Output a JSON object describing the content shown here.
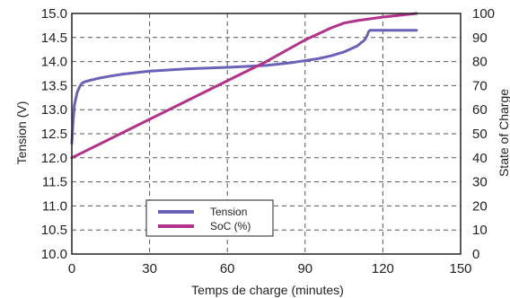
{
  "chart_data": {
    "type": "line",
    "title": "",
    "xlabel": "Temps de charge (minutes)",
    "ylabel_left": "Tension (V)",
    "ylabel_right": "State of Charge",
    "xlim": [
      0,
      150
    ],
    "ylim_left": [
      10.0,
      15.0
    ],
    "ylim_right": [
      0,
      100
    ],
    "x_ticks": [
      "0",
      "30",
      "60",
      "90",
      "120",
      "150"
    ],
    "y_left_ticks": [
      "10.0",
      "10.5",
      "11.0",
      "11.5",
      "12.0",
      "12.5",
      "13.0",
      "13.5",
      "14.0",
      "14.5",
      "15.0"
    ],
    "y_right_ticks": [
      "0",
      "10",
      "20",
      "30",
      "40",
      "50",
      "60",
      "70",
      "80",
      "90",
      "100"
    ],
    "grid": true,
    "legend_position": "bottom-center",
    "series": [
      {
        "name": "Tension",
        "axis": "left",
        "color": "#6a62b9",
        "x": [
          0,
          0.5,
          1,
          2,
          3,
          4,
          5,
          7,
          10,
          15,
          20,
          30,
          45,
          60,
          75,
          85,
          95,
          100,
          105,
          110,
          113,
          114,
          114.5,
          115,
          133
        ],
        "y": [
          12.3,
          12.75,
          13.1,
          13.35,
          13.48,
          13.55,
          13.58,
          13.61,
          13.65,
          13.7,
          13.74,
          13.8,
          13.85,
          13.88,
          13.92,
          13.98,
          14.06,
          14.12,
          14.2,
          14.32,
          14.45,
          14.55,
          14.62,
          14.65,
          14.65
        ]
      },
      {
        "name": "SoC (%)",
        "axis": "right",
        "color": "#b3308b",
        "x": [
          0,
          30,
          60,
          75,
          90,
          100,
          105,
          110,
          120,
          133
        ],
        "y": [
          40,
          56,
          72,
          80,
          89,
          94,
          96,
          97,
          98.5,
          100
        ]
      }
    ]
  }
}
